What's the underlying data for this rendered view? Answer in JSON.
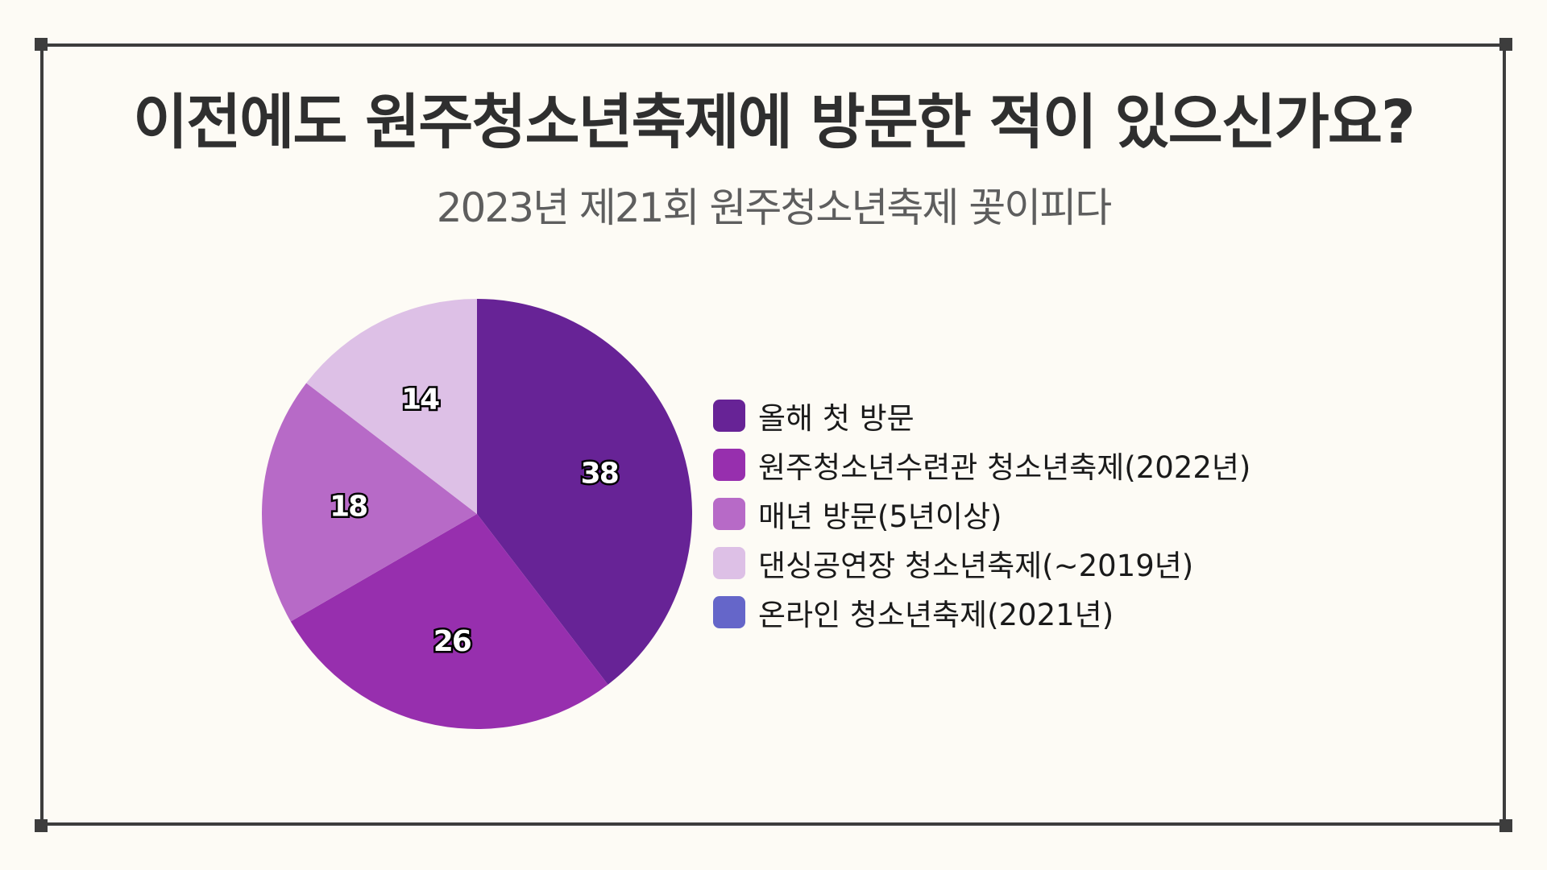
{
  "title": "이전에도 원주청소년축제에 방문한 적이 있으신가요?",
  "subtitle": "2023년 제21회 원주청소년축제 꽃이피다",
  "chart_data": {
    "type": "pie",
    "title": "이전에도 원주청소년축제에 방문한 적이 있으신가요?",
    "categories": [
      "올해 첫 방문",
      "원주청소년수련관 청소년축제(2022년)",
      "매년 방문(5년이상)",
      "댄싱공연장 청소년축제(~2019년)",
      "온라인 청소년축제(2021년)"
    ],
    "values": [
      38,
      26,
      18,
      14,
      0
    ],
    "colors": [
      "#672396",
      "#972fae",
      "#b76ac7",
      "#ddc0e6",
      "#6566c9"
    ],
    "legend_position": "right"
  }
}
